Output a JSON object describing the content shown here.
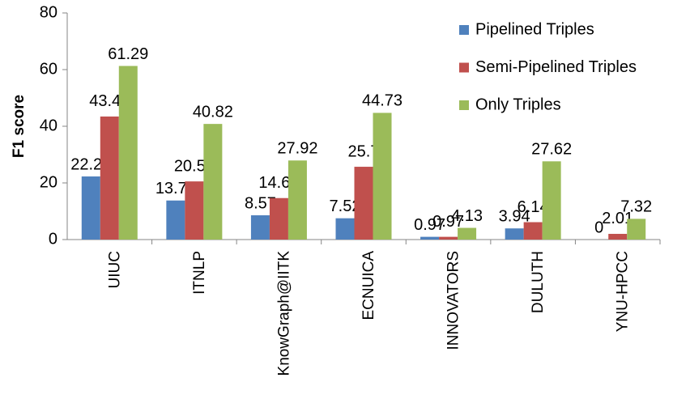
{
  "chart_data": {
    "type": "bar",
    "y_label": "F1 score",
    "categories": [
      "UIUC",
      "ITNLP",
      "KnowGraph@IITK",
      "ECNUICA",
      "INNOVATORS",
      "DULUTH",
      "YNU-HPCC"
    ],
    "series": [
      {
        "name": "Pipelined Triples",
        "color": "#4f81bd",
        "values": [
          22.28,
          13.79,
          8.57,
          7.52,
          0.97,
          3.94,
          0
        ]
      },
      {
        "name": "Semi-Pipelined Triples",
        "color": "#c0504d",
        "values": [
          43.44,
          20.53,
          14.65,
          25.7,
          0.97,
          6.14,
          2.01
        ]
      },
      {
        "name": "Only Triples",
        "color": "#9bbb59",
        "values": [
          61.29,
          40.82,
          27.92,
          44.73,
          4.13,
          27.62,
          7.32
        ]
      }
    ],
    "ylim": [
      0,
      80
    ],
    "yticks": [
      0,
      20,
      40,
      60,
      80
    ],
    "legend": "top-right"
  }
}
